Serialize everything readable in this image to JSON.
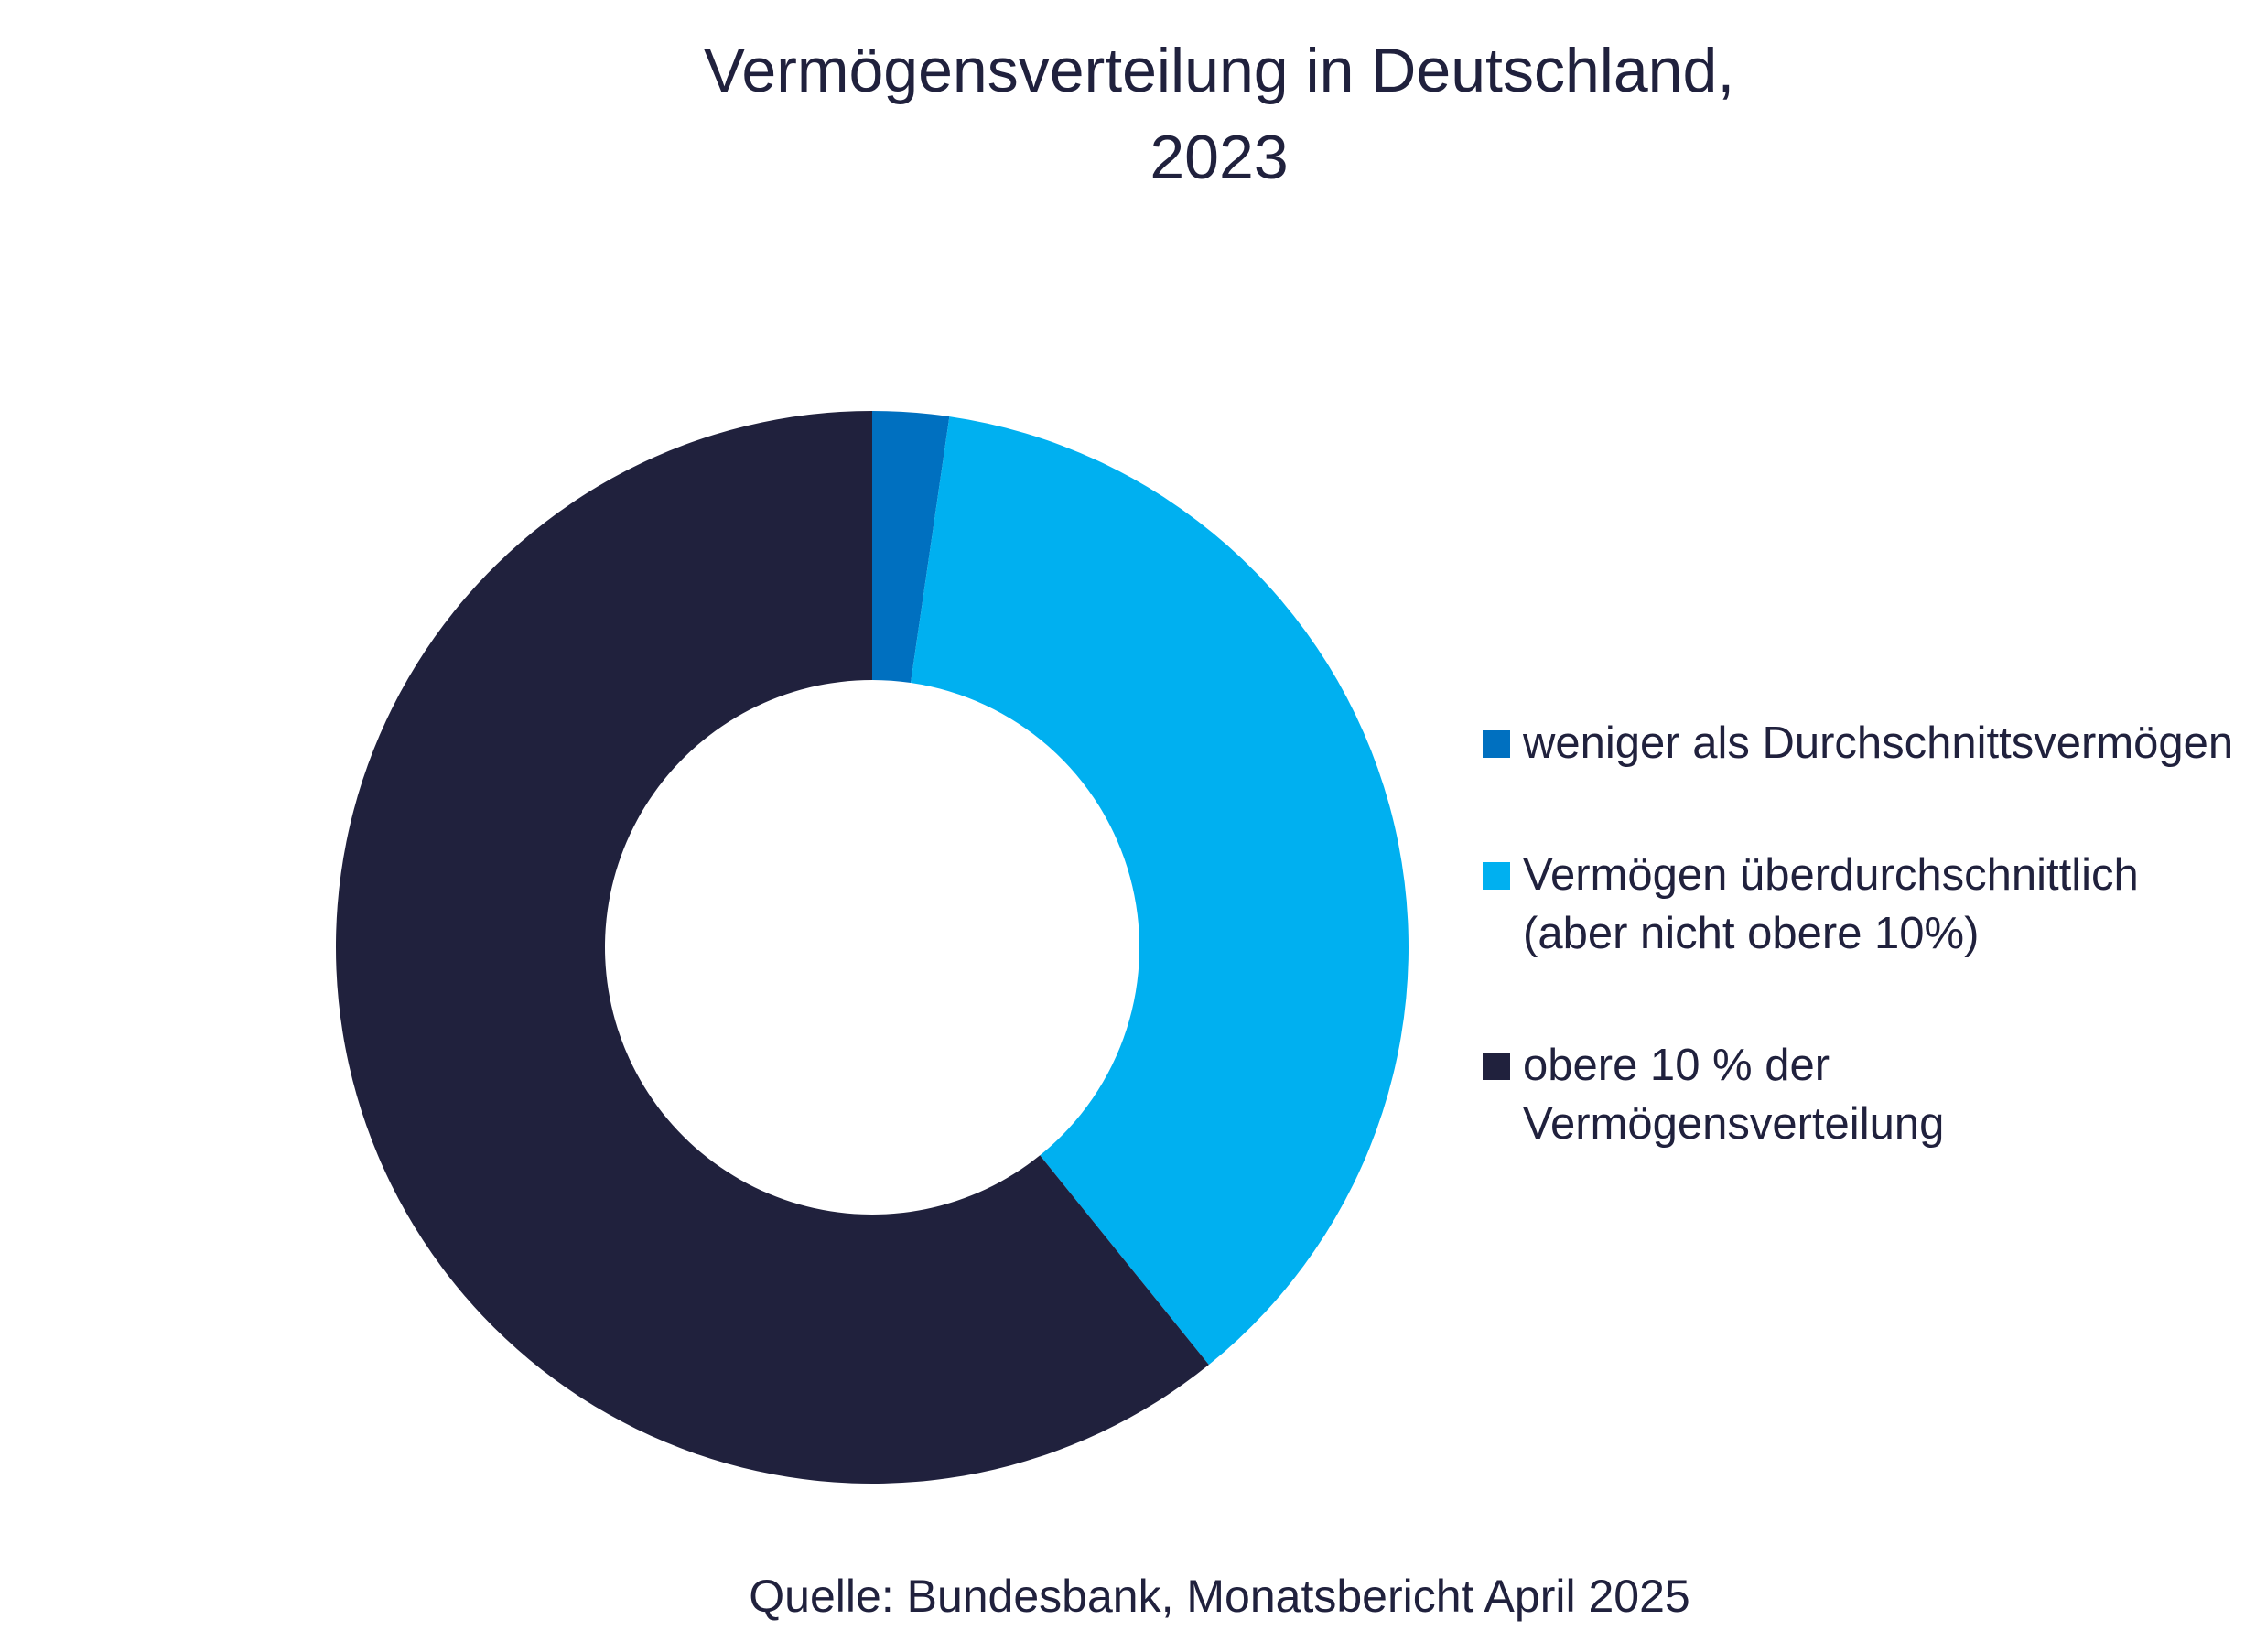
{
  "chart_data": {
    "type": "donut",
    "title": "Vermögensverteilung in Deutschland,\n2023",
    "categories": [
      "weniger als Durchschnittsvermögen",
      "Vermögen überdurchschnittlich (aber nicht obere 10%)",
      "obere 10 % der Vermögensverteilung"
    ],
    "values": [
      2.3,
      36.9,
      60.8
    ],
    "colors": [
      "#0070c0",
      "#00b0f0",
      "#20213d"
    ],
    "legend": "right",
    "source": "Quelle: Bundesbank, Monatsbericht April 2025"
  }
}
